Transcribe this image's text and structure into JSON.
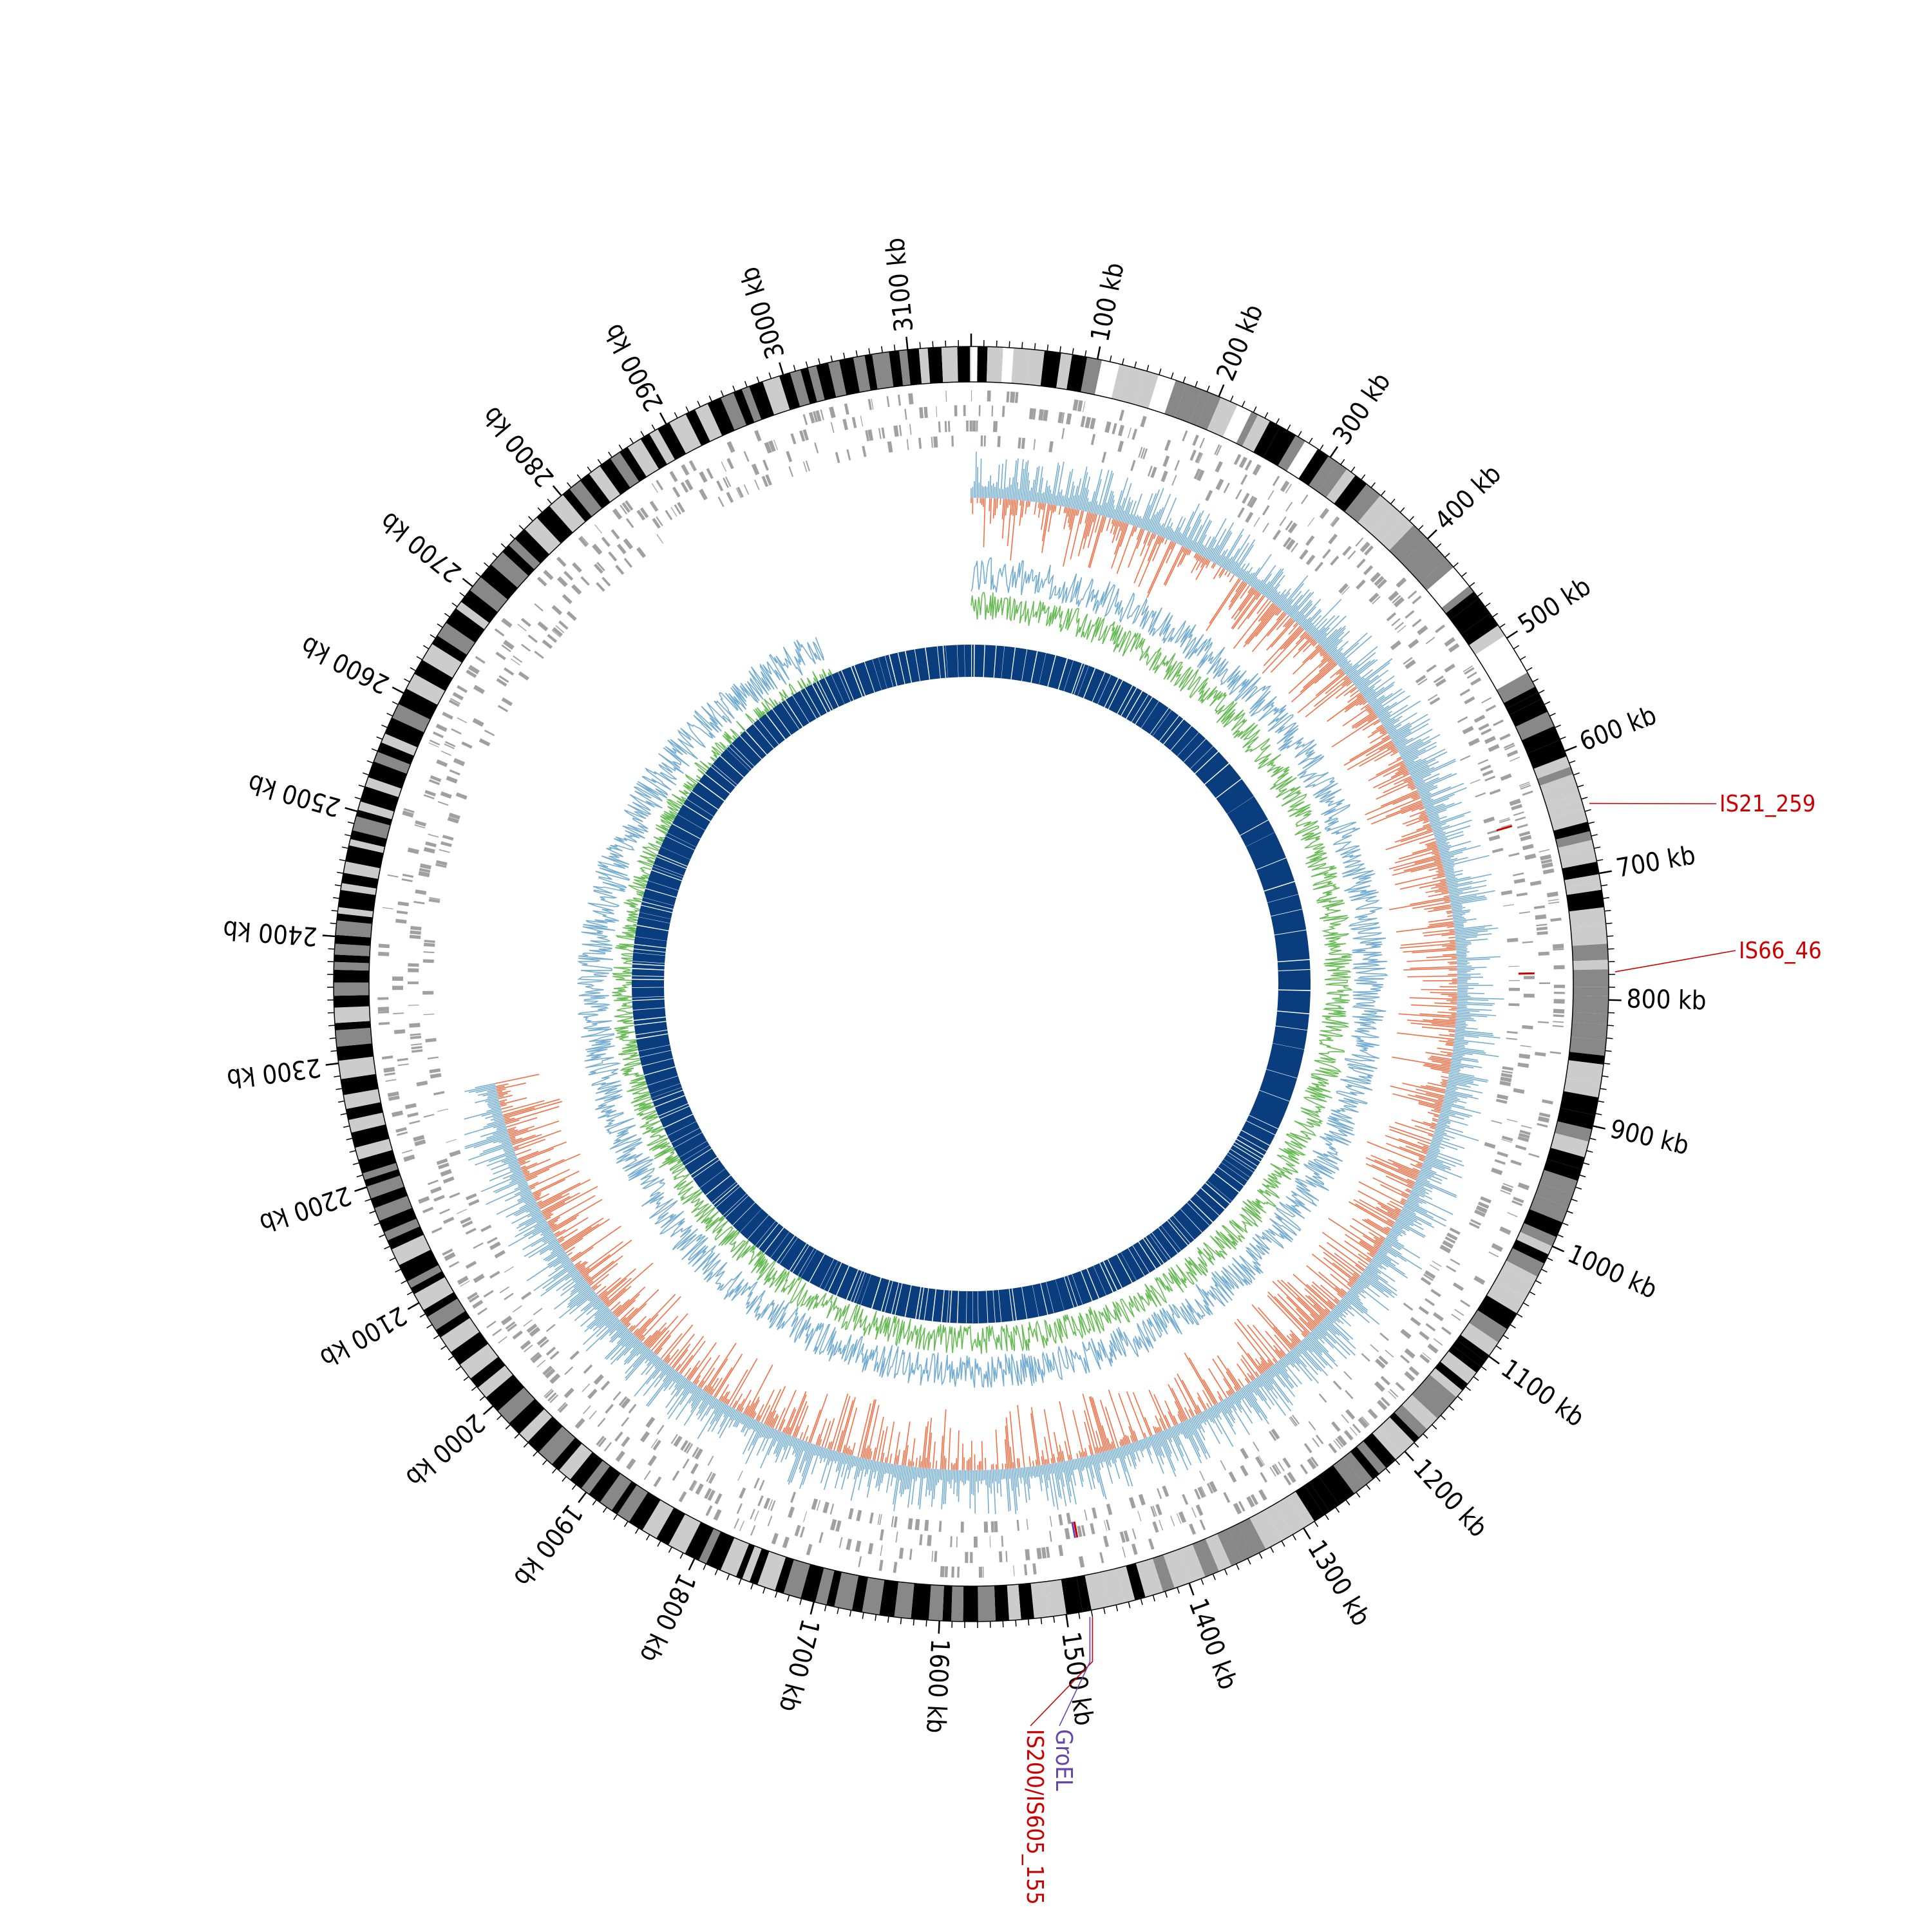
{
  "map": {
    "genome_length_kb": 3150,
    "tick_labels": [
      "100 kb",
      "200 kb",
      "300 kb",
      "400 kb",
      "500 kb",
      "600 kb",
      "700 kb",
      "800 kb",
      "900 kb",
      "1000 kb",
      "1100 kb",
      "1200 kb",
      "1300 kb",
      "1400 kb",
      "1500 kb",
      "1600 kb",
      "1700 kb",
      "1800 kb",
      "1900 kb",
      "2000 kb",
      "2100 kb",
      "2200 kb",
      "2300 kb",
      "2400 kb",
      "2500 kb",
      "2600 kb",
      "2700 kb",
      "2800 kb",
      "2900 kb",
      "3000 kb",
      "3100 kb"
    ],
    "annotations": [
      {
        "label": "IS21_259",
        "position_kb": 645,
        "color": "#cc0000"
      },
      {
        "label": "IS66_46",
        "position_kb": 778,
        "color": "#cc0000"
      },
      {
        "label": "IS200/IS605_155",
        "position_kb": 1480,
        "color": "#cc0000"
      },
      {
        "label": "GroEL",
        "position_kb": 1482,
        "color": "#6644aa"
      }
    ]
  },
  "tracks": [
    {
      "name": "karyotype",
      "type": "bands",
      "colors": [
        "#000000",
        "#888888",
        "#cccccc",
        "#ffffff"
      ]
    },
    {
      "name": "genes",
      "type": "tiles",
      "color": "#a0a0a0"
    },
    {
      "name": "gc_skew",
      "type": "histogram",
      "colors": [
        "#74add1",
        "#f46d43"
      ],
      "span_kb": [
        0,
        2260
      ]
    },
    {
      "name": "gc_content",
      "type": "line",
      "colors": [
        "#74add1",
        "#66bb55"
      ],
      "span_kb": [
        0,
        2940
      ]
    },
    {
      "name": "coverage",
      "type": "highlight",
      "color": "#0a3d7d"
    }
  ],
  "colors": {
    "annotation_red": "#cc0000",
    "annotation_purple": "#6644aa",
    "inner_ring": "#0a3d7d",
    "gene_grey": "#a0a0a0"
  }
}
